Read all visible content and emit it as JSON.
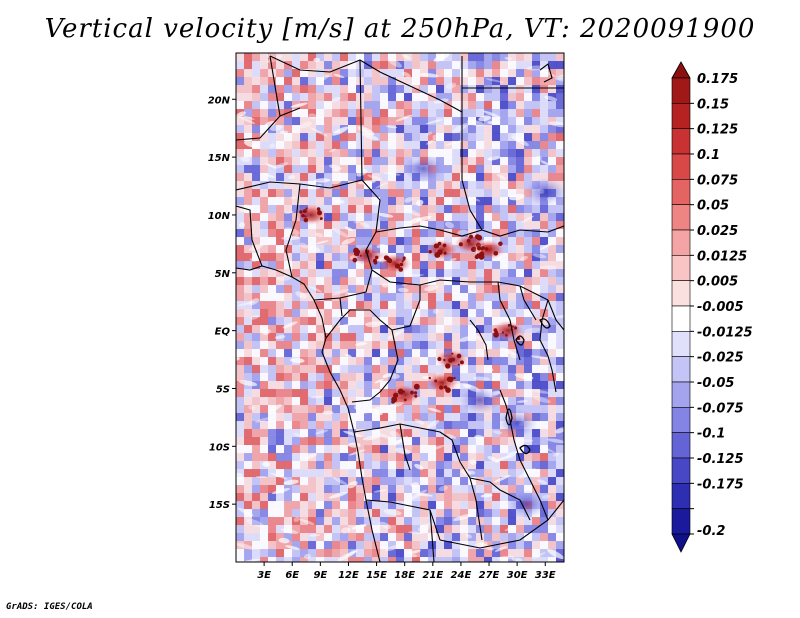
{
  "title": "Vertical velocity [m/s] at 250hPa, VT: 2020091900",
  "credit": "GrADS: IGES/COLA",
  "map": {
    "region": "Central Africa",
    "lon_range": [
      0,
      35
    ],
    "lat_range": [
      -20,
      24
    ],
    "lat_ticks": [
      {
        "value": 20,
        "label": "20N"
      },
      {
        "value": 15,
        "label": "15N"
      },
      {
        "value": 10,
        "label": "10N"
      },
      {
        "value": 5,
        "label": "5N"
      },
      {
        "value": 0,
        "label": "EQ"
      },
      {
        "value": -5,
        "label": "5S"
      },
      {
        "value": -10,
        "label": "10S"
      },
      {
        "value": -15,
        "label": "15S"
      }
    ],
    "lon_ticks": [
      {
        "value": 3,
        "label": "3E"
      },
      {
        "value": 6,
        "label": "6E"
      },
      {
        "value": 9,
        "label": "9E"
      },
      {
        "value": 12,
        "label": "12E"
      },
      {
        "value": 15,
        "label": "15E"
      },
      {
        "value": 18,
        "label": "18E"
      },
      {
        "value": 21,
        "label": "21E"
      },
      {
        "value": 24,
        "label": "24E"
      },
      {
        "value": 27,
        "label": "27E"
      },
      {
        "value": 30,
        "label": "30E"
      },
      {
        "value": 33,
        "label": "33E"
      }
    ],
    "strong_updraft_areas": [
      {
        "lon": 8,
        "lat": 10
      },
      {
        "lon": 14,
        "lat": 6.5
      },
      {
        "lon": 17,
        "lat": 5.8
      },
      {
        "lon": 22,
        "lat": 7
      },
      {
        "lon": 25,
        "lat": 7.5
      },
      {
        "lon": 27,
        "lat": 7
      },
      {
        "lon": 29,
        "lat": 0
      },
      {
        "lon": 23,
        "lat": -2.5
      },
      {
        "lon": 18,
        "lat": -5.5
      },
      {
        "lon": 22,
        "lat": -4.5
      }
    ]
  },
  "colorbar": {
    "levels": [
      {
        "label": "0.175",
        "color": "#a01818"
      },
      {
        "label": "0.15",
        "color": "#b52222"
      },
      {
        "label": "0.125",
        "color": "#c83232"
      },
      {
        "label": "0.1",
        "color": "#d84848"
      },
      {
        "label": "0.075",
        "color": "#e46464"
      },
      {
        "label": "0.05",
        "color": "#ee8484"
      },
      {
        "label": "0.025",
        "color": "#f4a4a4"
      },
      {
        "label": "0.0125",
        "color": "#f8c4c4"
      },
      {
        "label": "0.005",
        "color": "#fbe0e0"
      },
      {
        "label": "-0.005",
        "color": "#ffffff"
      },
      {
        "label": "-0.0125",
        "color": "#e0e0fb"
      },
      {
        "label": "-0.025",
        "color": "#c4c4f6"
      },
      {
        "label": "-0.05",
        "color": "#a4a4ee"
      },
      {
        "label": "-0.075",
        "color": "#8484e4"
      },
      {
        "label": "-0.1",
        "color": "#6464d6"
      },
      {
        "label": "-0.125",
        "color": "#4848c6"
      },
      {
        "label": "-0.175",
        "color": "#2e2eb2"
      },
      {
        "label": "-0.2",
        "color": "#1a1a9c"
      }
    ],
    "top_extend_color": "#8c1010",
    "bottom_extend_color": "#10108a"
  }
}
